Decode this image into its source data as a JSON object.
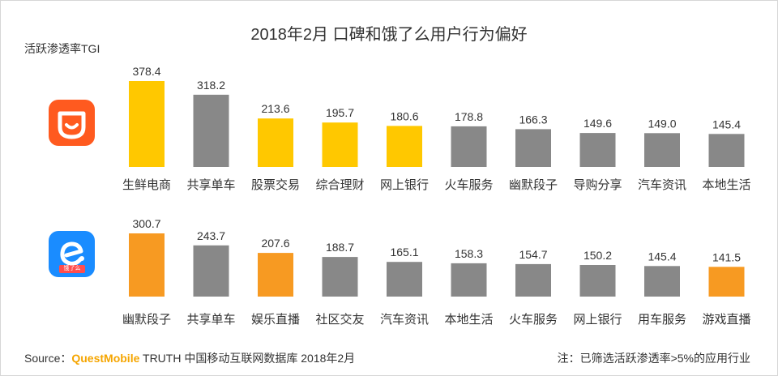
{
  "title": "2018年2月 口碑和饿了么用户行为偏好",
  "ylabel": "活跃渗透率TGI",
  "footer": {
    "source_prefix": "Source：",
    "brand": "QuestMobile",
    "source_rest": " TRUTH 中国移动互联网数据库 2018年2月",
    "note": "注：已筛选活跃渗透率>5%的应用行业"
  },
  "logos": {
    "eleme_tag": "饿了么"
  },
  "colors": {
    "highlight_yellow": "#ffc800",
    "highlight_orange": "#f79a22",
    "gray": "#888888"
  },
  "chart_data": [
    {
      "type": "bar",
      "name": "口碑",
      "categories": [
        "生鲜电商",
        "共享单车",
        "股票交易",
        "综合理财",
        "网上银行",
        "火车服务",
        "幽默段子",
        "导购分享",
        "汽车资讯",
        "本地生活"
      ],
      "values": [
        378.4,
        318.2,
        213.6,
        195.7,
        180.6,
        178.8,
        166.3,
        149.6,
        149.0,
        145.4
      ],
      "value_labels": [
        "378.4",
        "318.2",
        "213.6",
        "195.7",
        "180.6",
        "178.8",
        "166.3",
        "149.6",
        "149.0",
        "145.4"
      ],
      "highlight": [
        true,
        false,
        true,
        true,
        true,
        false,
        false,
        false,
        false,
        false
      ],
      "highlight_color": "#ffc800"
    },
    {
      "type": "bar",
      "name": "饿了么",
      "categories": [
        "幽默段子",
        "共享单车",
        "娱乐直播",
        "社区交友",
        "汽车资讯",
        "本地生活",
        "火车服务",
        "网上银行",
        "用车服务",
        "游戏直播"
      ],
      "values": [
        300.7,
        243.7,
        207.6,
        188.7,
        165.1,
        158.3,
        154.7,
        150.2,
        145.4,
        141.5
      ],
      "value_labels": [
        "300.7",
        "243.7",
        "207.6",
        "188.7",
        "165.1",
        "158.3",
        "154.7",
        "150.2",
        "145.4",
        "141.5"
      ],
      "highlight": [
        true,
        false,
        true,
        false,
        false,
        false,
        false,
        false,
        false,
        true
      ],
      "highlight_color": "#f79a22"
    }
  ]
}
